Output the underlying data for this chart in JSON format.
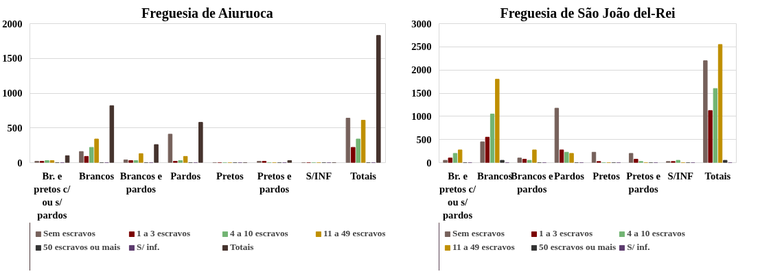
{
  "chart_data": [
    {
      "type": "bar",
      "title": "Freguesia de Aiuruoca",
      "categories": [
        "Br. e pretos c/ ou s/ pardos",
        "Brancos",
        "Brancos e pardos",
        "Pardos",
        "Pretos",
        "Pretos e pardos",
        "S/INF",
        "Totais"
      ],
      "series": [
        {
          "name": "Sem escravos",
          "color": "#76615b",
          "values": [
            20,
            160,
            40,
            410,
            0,
            20,
            0,
            640
          ]
        },
        {
          "name": "1 a 3 escravos",
          "color": "#7b0000",
          "values": [
            20,
            90,
            30,
            20,
            0,
            20,
            0,
            220
          ]
        },
        {
          "name": "4 a 10 escravos",
          "color": "#72b473",
          "values": [
            30,
            220,
            30,
            30,
            0,
            0,
            0,
            340
          ]
        },
        {
          "name": "11 a 49 escravos",
          "color": "#bf8f00",
          "values": [
            30,
            340,
            130,
            90,
            0,
            0,
            0,
            610
          ]
        },
        {
          "name": "50 escravos ou mais",
          "color": "#333333",
          "values": [
            0,
            0,
            0,
            0,
            0,
            0,
            0,
            0
          ]
        },
        {
          "name": "S/ inf.",
          "color": "#5c3b6e",
          "values": [
            0,
            0,
            0,
            0,
            0,
            0,
            0,
            0
          ]
        },
        {
          "name": "Totais",
          "color": "#45332d",
          "values": [
            100,
            820,
            260,
            580,
            0,
            30,
            0,
            1830
          ]
        }
      ],
      "ylim": [
        0,
        2000
      ],
      "yticks": [
        0,
        500,
        1000,
        1500,
        2000
      ],
      "grid": "y",
      "legend": "bottom"
    },
    {
      "type": "bar",
      "title": "Freguesia de São João del-Rei",
      "categories": [
        "Br. e pretos c/ ou s/ pardos",
        "Brancos",
        "Brancos e pardos",
        "Pardos",
        "Pretos",
        "Pretos e pardos",
        "S/INF",
        "Totais"
      ],
      "series": [
        {
          "name": "Sem escravos",
          "color": "#76615b",
          "values": [
            50,
            450,
            100,
            1175,
            225,
            200,
            25,
            2200
          ]
        },
        {
          "name": "1 a 3 escravos",
          "color": "#7b0000",
          "values": [
            100,
            550,
            75,
            275,
            25,
            75,
            25,
            1125
          ]
        },
        {
          "name": "4 a 10 escravos",
          "color": "#72b473",
          "values": [
            200,
            1050,
            50,
            225,
            0,
            25,
            50,
            1600
          ]
        },
        {
          "name": "11 a 49 escravos",
          "color": "#bf8f00",
          "values": [
            275,
            1800,
            275,
            200,
            0,
            0,
            0,
            2550
          ]
        },
        {
          "name": "50 escravos ou mais",
          "color": "#333333",
          "values": [
            0,
            50,
            0,
            0,
            0,
            0,
            0,
            50
          ]
        },
        {
          "name": "S/ inf.",
          "color": "#5c3b6e",
          "values": [
            0,
            0,
            0,
            0,
            0,
            0,
            0,
            0
          ]
        }
      ],
      "ylim": [
        0,
        3000
      ],
      "yticks": [
        0,
        500,
        1000,
        1500,
        2000,
        2500,
        3000
      ],
      "grid": "y",
      "legend": "bottom"
    }
  ]
}
